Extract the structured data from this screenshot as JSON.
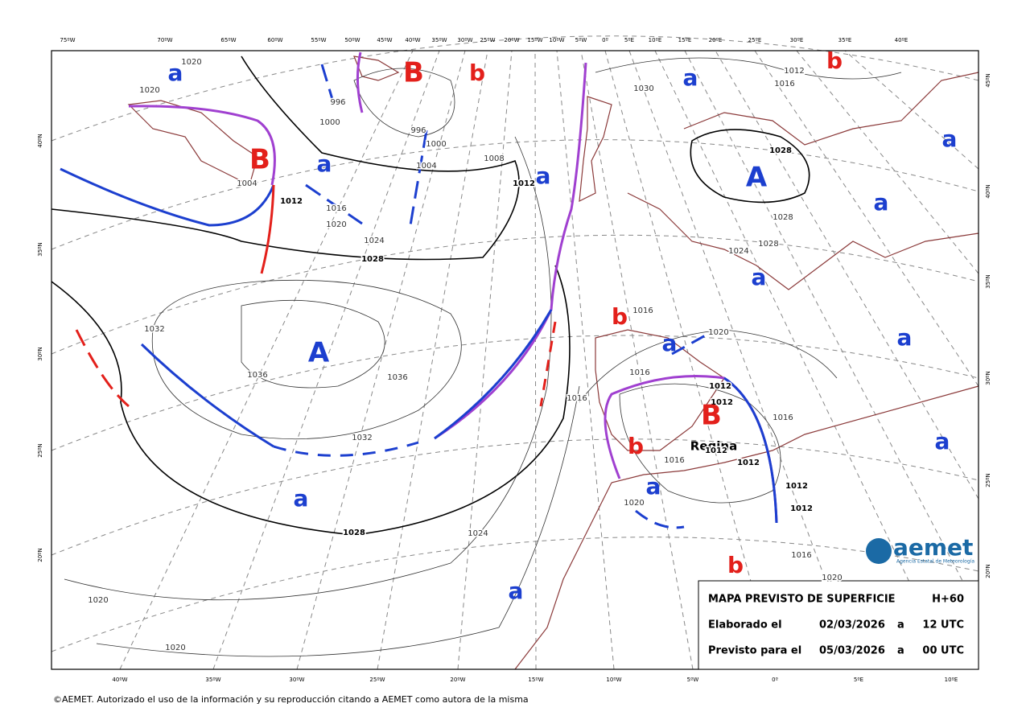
{
  "map": {
    "top_longitudes": [
      "75ºW",
      "70ºW",
      "65ºW",
      "60ºW",
      "55ºW",
      "50ºW",
      "45ºW",
      "40ºW",
      "35ºW",
      "30ºW",
      "25ºW",
      "20ºW",
      "15ºW",
      "10ºW",
      "5ºW",
      "0º",
      "5ºE",
      "10ºE",
      "15ºE",
      "20ºE",
      "25ºE",
      "30ºE",
      "35ºE",
      "40ºE"
    ],
    "bottom_longitudes": [
      "40ºW",
      "35ºW",
      "30ºW",
      "25ºW",
      "20ºW",
      "15ºW",
      "10ºW",
      "5ºW",
      "0º",
      "5ºE",
      "10ºE"
    ],
    "left_latitudes": [
      "40ºN",
      "35ºN",
      "30ºN",
      "25ºN",
      "20ºN"
    ],
    "right_latitudes": [
      "45ºN",
      "40ºN",
      "35ºN",
      "30ºN",
      "25ºN",
      "20ºN"
    ],
    "high_color": "#1c3fcf",
    "low_color": "#e3201b",
    "centers": [
      "a",
      "B",
      "B",
      "b",
      "a",
      "a",
      "A",
      "A",
      "a",
      "b",
      "a",
      "a",
      "a",
      "a",
      "a",
      "B",
      "b",
      "a",
      "a",
      "a",
      "a",
      "b",
      "b"
    ],
    "isobar_labels": [
      "1020",
      "1020",
      "996",
      "1000",
      "996",
      "1000",
      "1004",
      "1008",
      "1012",
      "1004",
      "1012",
      "1016",
      "1020",
      "1024",
      "1028",
      "1032",
      "1036",
      "1036",
      "1032",
      "1028",
      "1024",
      "1020",
      "1020",
      "1030",
      "1028",
      "1028",
      "1028",
      "1024",
      "1012",
      "1016",
      "1016",
      "1020",
      "1016",
      "1016",
      "1012",
      "1012",
      "1012",
      "1012",
      "1016",
      "1016",
      "1020",
      "1012",
      "1012",
      "1016",
      "1020"
    ],
    "storm_name": "Regina"
  },
  "info_box": {
    "title": "MAPA PREVISTO DE SUPERFICIE",
    "step": "H+60",
    "made_label": "Elaborado el",
    "made_date": "02/03/2026",
    "made_a": "a",
    "made_time": "12 UTC",
    "valid_label": "Previsto para el",
    "valid_date": "05/03/2026",
    "valid_a": "a",
    "valid_time": "00 UTC"
  },
  "logo": {
    "name": "aemet",
    "subtitle": "Agencia Estatal de Meteorología"
  },
  "copyright": "©AEMET. Autorizado el uso de la información y su reproducción citando a AEMET como autora de la misma"
}
